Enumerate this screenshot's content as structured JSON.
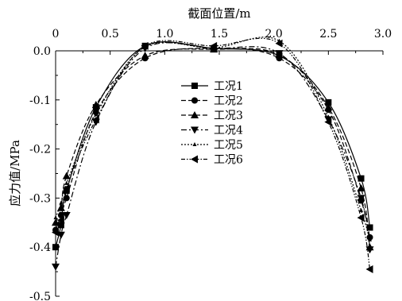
{
  "chart_data": {
    "type": "line",
    "xlabel": "截面位置/m",
    "ylabel": "应力值/MPa",
    "x_position": "top",
    "xlim": [
      0.0,
      3.0
    ],
    "ylim": [
      -0.5,
      0.0
    ],
    "x_ticks": [
      "0",
      "0.5",
      "1.0",
      "1.5",
      "2.0",
      "2.5",
      "3.0"
    ],
    "y_ticks": [
      "0.0",
      "-0.1",
      "-0.2",
      "-0.3",
      "-0.4",
      "-0.5"
    ],
    "legend_position": "center",
    "grid": false,
    "series": [
      {
        "name": "工况1",
        "marker": "square",
        "dash": "solid",
        "points": [
          [
            0.0,
            -0.4
          ],
          [
            0.05,
            -0.355
          ],
          [
            0.1,
            -0.285
          ],
          [
            0.37,
            -0.115
          ],
          [
            0.82,
            0.01
          ],
          [
            1.45,
            0.005
          ],
          [
            2.05,
            -0.01
          ],
          [
            2.5,
            -0.105
          ],
          [
            2.8,
            -0.26
          ],
          [
            2.88,
            -0.36
          ]
        ]
      },
      {
        "name": "工况2",
        "marker": "circle",
        "dash": "dash",
        "points": [
          [
            0.0,
            -0.365
          ],
          [
            0.05,
            -0.335
          ],
          [
            0.1,
            -0.3
          ],
          [
            0.37,
            -0.125
          ],
          [
            0.82,
            -0.015
          ],
          [
            1.45,
            0.005
          ],
          [
            2.05,
            -0.015
          ],
          [
            2.5,
            -0.12
          ],
          [
            2.8,
            -0.305
          ],
          [
            2.88,
            -0.38
          ]
        ]
      },
      {
        "name": "工况3",
        "marker": "triangle-up",
        "dash": "dash",
        "points": [
          [
            0.0,
            -0.35
          ],
          [
            0.05,
            -0.32
          ],
          [
            0.1,
            -0.255
          ],
          [
            0.37,
            -0.11
          ],
          [
            0.82,
            -0.01
          ],
          [
            1.45,
            0.003
          ],
          [
            2.05,
            -0.008
          ],
          [
            2.5,
            -0.115
          ],
          [
            2.8,
            -0.28
          ],
          [
            2.88,
            -0.4
          ]
        ]
      },
      {
        "name": "工况4",
        "marker": "triangle-down",
        "dash": "dashdot",
        "points": [
          [
            0.0,
            -0.44
          ],
          [
            0.05,
            -0.375
          ],
          [
            0.1,
            -0.335
          ],
          [
            0.37,
            -0.145
          ],
          [
            0.82,
            0.005
          ],
          [
            1.45,
            0.005
          ],
          [
            2.05,
            -0.005
          ],
          [
            2.5,
            -0.14
          ],
          [
            2.8,
            -0.3
          ],
          [
            2.88,
            -0.405
          ]
        ]
      },
      {
        "name": "工况5",
        "marker": "small-triangle",
        "dash": "dot",
        "points": [
          [
            0.0,
            -0.34
          ],
          [
            0.05,
            -0.31
          ],
          [
            0.1,
            -0.27
          ],
          [
            0.37,
            -0.13
          ],
          [
            0.82,
            0.008
          ],
          [
            1.45,
            0.006
          ],
          [
            2.05,
            0.02
          ],
          [
            2.5,
            -0.135
          ],
          [
            2.8,
            -0.325
          ],
          [
            2.88,
            -0.385
          ]
        ]
      },
      {
        "name": "工况6",
        "marker": "triangle-left",
        "dash": "dashdotdot",
        "points": [
          [
            0.0,
            -0.37
          ],
          [
            0.05,
            -0.345
          ],
          [
            0.1,
            -0.28
          ],
          [
            0.37,
            -0.14
          ],
          [
            0.82,
            0.01
          ],
          [
            1.45,
            0.01
          ],
          [
            2.05,
            0.015
          ],
          [
            2.5,
            -0.145
          ],
          [
            2.8,
            -0.34
          ],
          [
            2.88,
            -0.445
          ]
        ]
      }
    ]
  }
}
